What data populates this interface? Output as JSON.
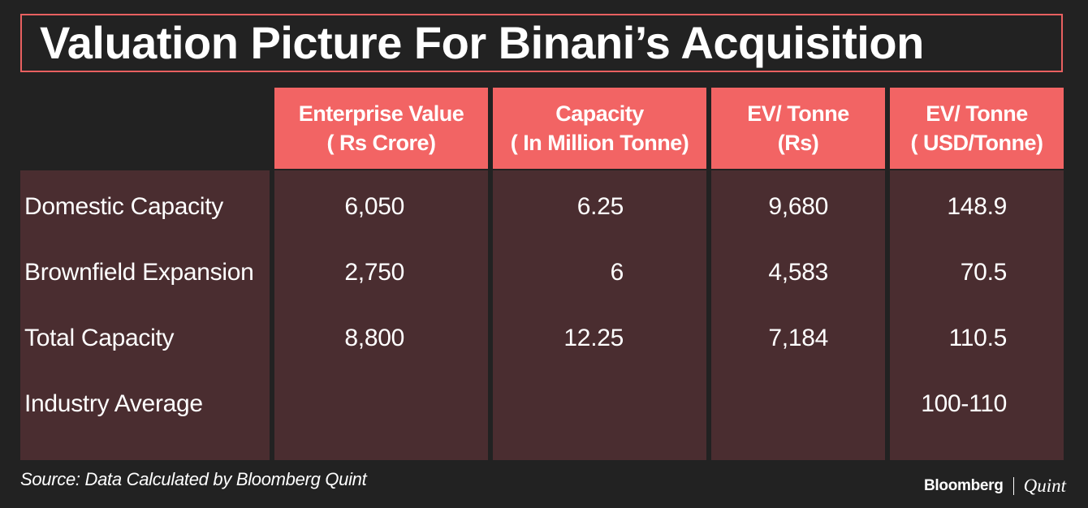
{
  "title": "Valuation Picture For Binani’s Acquisition",
  "chart_data": {
    "type": "table",
    "columns": [
      {
        "line1": "Enterprise Value",
        "line2": "( Rs Crore)"
      },
      {
        "line1": "Capacity",
        "line2": "( In Million Tonne)"
      },
      {
        "line1": "EV/ Tonne",
        "line2": "(Rs)"
      },
      {
        "line1": "EV/ Tonne",
        "line2": "( USD/Tonne)"
      }
    ],
    "rows": [
      {
        "label": "Domestic Capacity",
        "values": [
          "6,050",
          "6.25",
          "9,680",
          "148.9"
        ]
      },
      {
        "label": "Brownfield Expansion",
        "values": [
          "2,750",
          "6",
          "4,583",
          "70.5"
        ]
      },
      {
        "label": "Total Capacity",
        "values": [
          "8,800",
          "12.25",
          "7,184",
          "110.5"
        ]
      },
      {
        "label": "Industry Average",
        "values": [
          "",
          "",
          "",
          "100-110"
        ]
      }
    ]
  },
  "source": "Source: Data Calculated by Bloomberg Quint",
  "logo": {
    "primary": "Bloomberg",
    "secondary": "Quint"
  },
  "colors": {
    "header": "#f26464",
    "body": "#4a2d30",
    "background": "#222222",
    "border": "#e86060"
  }
}
